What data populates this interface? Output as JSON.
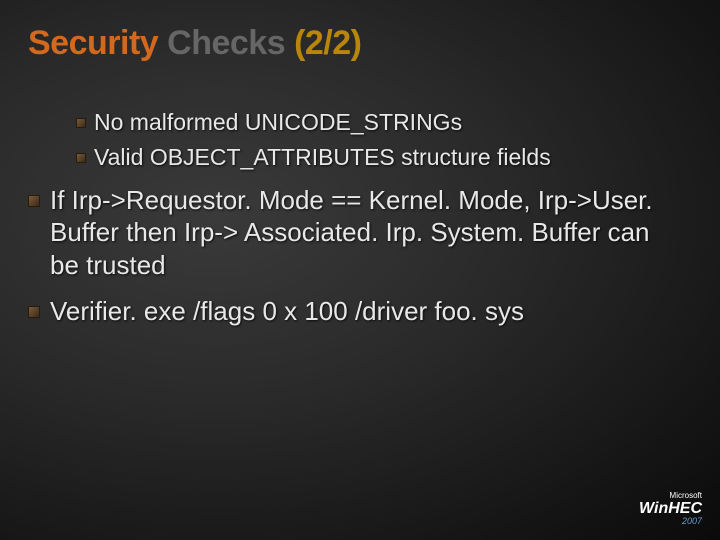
{
  "title": {
    "word1": "Security",
    "word2": "Checks",
    "word3": "(2/2)"
  },
  "bullets": {
    "inner": [
      "No malformed UNICODE_STRINGs",
      "Valid OBJECT_ATTRIBUTES structure fields"
    ],
    "outer": [
      "If Irp->Requestor. Mode == Kernel. Mode, Irp->User. Buffer then Irp-> Associated. Irp. System. Buffer can be trusted",
      "Verifier. exe /flags 0 x 100 /driver foo. sys"
    ]
  },
  "logo": {
    "company": "Microsoft",
    "product": "WinHEC",
    "year": "2007"
  },
  "colors": {
    "title_accent": "#d2691e",
    "title_muted": "#666666",
    "title_gold": "#b8860b",
    "text": "#e8e8e8",
    "bullet_fill": "#7a5c3a",
    "background_dark": "#0a0a0a",
    "background_mid": "#2a2a2a",
    "logo_accent": "#6699cc"
  }
}
